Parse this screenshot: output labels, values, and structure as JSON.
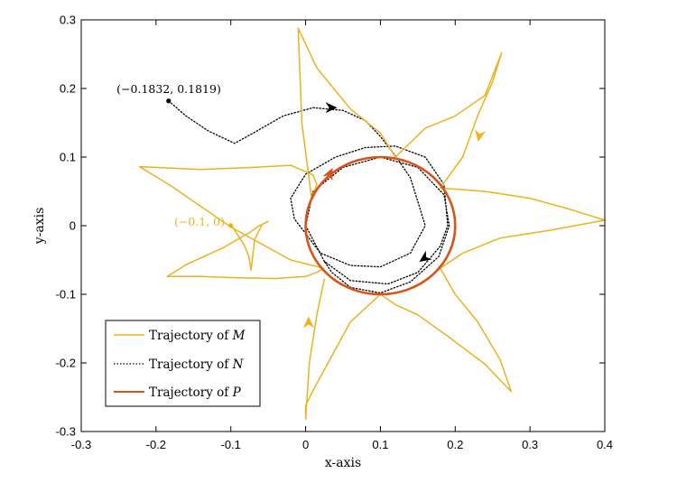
{
  "chart_data": {
    "type": "line",
    "title": "",
    "xlabel": "x-axis",
    "ylabel": "y-axis",
    "xlim": [
      -0.3,
      0.4
    ],
    "ylim": [
      -0.3,
      0.3
    ],
    "xticks": [
      -0.3,
      -0.2,
      -0.1,
      0,
      0.1,
      0.2,
      0.3,
      0.4
    ],
    "xtick_labels": [
      "-0.3",
      "-0.2",
      "-0.1",
      "0",
      "0.1",
      "0.2",
      "0.3",
      "0.4"
    ],
    "yticks": [
      -0.3,
      -0.2,
      -0.1,
      0,
      0.1,
      0.2,
      0.3
    ],
    "ytick_labels": [
      "-0.3",
      "-0.2",
      "-0.1",
      "0",
      "0.1",
      "0.2",
      "0.3"
    ],
    "grid": false,
    "legend": {
      "location": "bottom-left",
      "entries": [
        {
          "prefix": "Trajectory of ",
          "symbol": "M",
          "style": "solid",
          "color": "#EDB120"
        },
        {
          "prefix": "Trajectory of ",
          "symbol": "N",
          "style": "dotted",
          "color": "#000000"
        },
        {
          "prefix": "Trajectory of ",
          "symbol": "P",
          "style": "solid",
          "color": "#D95319"
        }
      ]
    },
    "annotations": [
      {
        "text": "(−0.1832, 0.1819)",
        "x": -0.1832,
        "y": 0.1819,
        "color": "#000000"
      },
      {
        "text": "(−0.1, 0)",
        "x": -0.1,
        "y": 0,
        "color": "#EDB120"
      }
    ],
    "series": [
      {
        "name": "Trajectory of M",
        "color": "#EDB120",
        "style": "solid",
        "start": [
          -0.1,
          0.0
        ],
        "x": [
          -0.1,
          -0.093,
          -0.082,
          -0.076,
          -0.073,
          -0.068,
          -0.058,
          -0.05,
          -0.062,
          -0.075,
          -0.11,
          -0.16,
          -0.185,
          -0.14,
          -0.09,
          -0.04,
          0.0,
          0.015,
          0.024,
          -0.02,
          -0.1,
          -0.18,
          -0.222,
          -0.14,
          -0.07,
          -0.02,
          0.01,
          0.015,
          0.008,
          -0.005,
          -0.01,
          0.015,
          0.06,
          0.1,
          0.12,
          0.16,
          0.2,
          0.24,
          0.262,
          0.25,
          0.23,
          0.21,
          0.19,
          0.18,
          0.24,
          0.3,
          0.35,
          0.4,
          0.33,
          0.26,
          0.21,
          0.18,
          0.2,
          0.23,
          0.26,
          0.275,
          0.24,
          0.19,
          0.15,
          0.12,
          0.1,
          0.06,
          0.03,
          0.01,
          0.0,
          0.0,
          0.005,
          0.015,
          0.025
        ],
        "y": [
          0.003,
          -0.01,
          -0.028,
          -0.045,
          -0.065,
          -0.02,
          0.002,
          0.006,
          0.0,
          -0.01,
          -0.032,
          -0.057,
          -0.074,
          -0.074,
          -0.076,
          -0.077,
          -0.074,
          -0.068,
          -0.062,
          -0.05,
          -0.002,
          0.058,
          0.086,
          0.082,
          0.085,
          0.088,
          0.074,
          0.06,
          0.04,
          0.15,
          0.288,
          0.23,
          0.17,
          0.135,
          0.1,
          0.142,
          0.16,
          0.19,
          0.252,
          0.21,
          0.16,
          0.1,
          0.07,
          0.055,
          0.05,
          0.04,
          0.025,
          0.008,
          -0.006,
          -0.018,
          -0.04,
          -0.062,
          -0.1,
          -0.14,
          -0.195,
          -0.242,
          -0.202,
          -0.161,
          -0.13,
          -0.115,
          -0.1,
          -0.14,
          -0.2,
          -0.24,
          -0.262,
          -0.282,
          -0.2,
          -0.13,
          -0.078
        ]
      },
      {
        "name": "Trajectory of N",
        "color": "#000000",
        "style": "dotted",
        "start": [
          -0.1832,
          0.1819
        ],
        "x": [
          -0.1832,
          -0.16,
          -0.13,
          -0.095,
          -0.07,
          -0.03,
          0.01,
          0.05,
          0.08,
          0.1,
          0.12,
          0.14,
          0.15,
          0.16,
          0.14,
          0.1,
          0.06,
          0.02,
          -0.015,
          -0.02,
          0.0,
          0.04,
          0.08,
          0.12,
          0.16,
          0.185,
          0.19,
          0.18,
          0.15,
          0.11,
          0.06,
          0.025,
          0.0,
          0.01,
          0.05,
          0.1,
          0.15,
          0.185,
          0.192,
          0.178,
          0.14,
          0.1,
          0.06,
          0.035,
          0.025
        ],
        "y": [
          0.1819,
          0.16,
          0.138,
          0.12,
          0.135,
          0.16,
          0.172,
          0.168,
          0.153,
          0.13,
          0.102,
          0.07,
          0.035,
          0.0,
          -0.04,
          -0.06,
          -0.058,
          -0.04,
          0.01,
          0.04,
          0.075,
          0.1,
          0.114,
          0.116,
          0.1,
          0.06,
          0.0,
          -0.03,
          -0.068,
          -0.085,
          -0.08,
          -0.052,
          0.0,
          0.05,
          0.085,
          0.1,
          0.085,
          0.045,
          0.0,
          -0.045,
          -0.082,
          -0.098,
          -0.09,
          -0.068,
          -0.052
        ]
      },
      {
        "name": "Trajectory of P",
        "color": "#D95319",
        "style": "solid",
        "circle_center": [
          0.1,
          0.0
        ],
        "circle_radius": 0.1
      }
    ]
  }
}
